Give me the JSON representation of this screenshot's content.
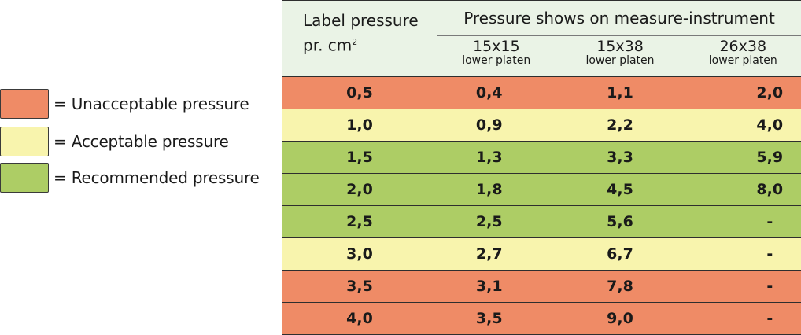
{
  "colors": {
    "unacceptable": "#ef8b66",
    "acceptable": "#f8f4ad",
    "recommended": "#adcd65",
    "header": "#eaf3e6"
  },
  "legend": [
    {
      "label": "= Unacceptable pressure",
      "level": "unacceptable"
    },
    {
      "label": "= Acceptable pressure",
      "level": "acceptable"
    },
    {
      "label": "= Recommended pressure",
      "level": "recommended"
    }
  ],
  "table": {
    "label_header": "Label pressure",
    "label_header_unit": "pr. cm",
    "label_header_sup": "2",
    "group_header": "Pressure shows on measure-instrument",
    "columns": [
      {
        "size": "15x15",
        "sub": "lower platen"
      },
      {
        "size": "15x38",
        "sub": "lower platen"
      },
      {
        "size": "26x38",
        "sub": "lower platen"
      }
    ],
    "rows": [
      {
        "level": "unacceptable",
        "cells": [
          "0,5",
          "0,4",
          "1,1",
          "2,0"
        ]
      },
      {
        "level": "acceptable",
        "cells": [
          "1,0",
          "0,9",
          "2,2",
          "4,0"
        ]
      },
      {
        "level": "recommended",
        "cells": [
          "1,5",
          "1,3",
          "3,3",
          "5,9"
        ]
      },
      {
        "level": "recommended",
        "cells": [
          "2,0",
          "1,8",
          "4,5",
          "8,0"
        ]
      },
      {
        "level": "recommended",
        "cells": [
          "2,5",
          "2,5",
          "5,6",
          "-"
        ]
      },
      {
        "level": "acceptable",
        "cells": [
          "3,0",
          "2,7",
          "6,7",
          "-"
        ]
      },
      {
        "level": "unacceptable",
        "cells": [
          "3,5",
          "3,1",
          "7,8",
          "-"
        ]
      },
      {
        "level": "unacceptable",
        "cells": [
          "4,0",
          "3,5",
          "9,0",
          "-"
        ]
      }
    ]
  }
}
